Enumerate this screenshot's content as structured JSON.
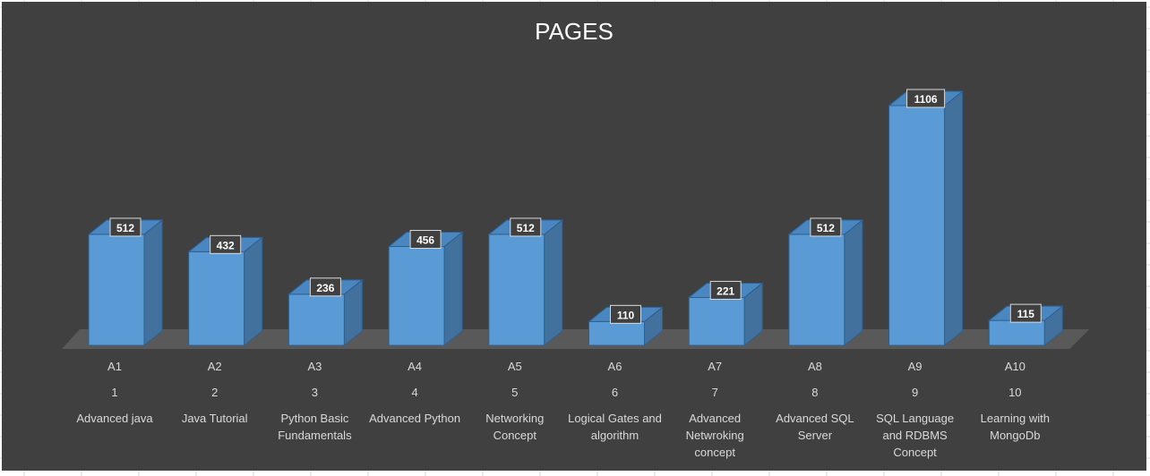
{
  "chart_data": {
    "type": "bar",
    "title": "PAGES",
    "categories": [
      {
        "id": "A1",
        "num": "1",
        "name": "Advanced java"
      },
      {
        "id": "A2",
        "num": "2",
        "name": "Java Tutorial"
      },
      {
        "id": "A3",
        "num": "3",
        "name": "Python Basic Fundamentals"
      },
      {
        "id": "A4",
        "num": "4",
        "name": "Advanced Python"
      },
      {
        "id": "A5",
        "num": "5",
        "name": "Networking Concept"
      },
      {
        "id": "A6",
        "num": "6",
        "name": "Logical Gates and algorithm"
      },
      {
        "id": "A7",
        "num": "7",
        "name": "Advanced Netwroking concept"
      },
      {
        "id": "A8",
        "num": "8",
        "name": "Advanced SQL Server"
      },
      {
        "id": "A9",
        "num": "9",
        "name": "SQL Language and RDBMS Concept"
      },
      {
        "id": "A10",
        "num": "10",
        "name": "Learning with MongoDb"
      }
    ],
    "values": [
      512,
      432,
      236,
      456,
      512,
      110,
      221,
      512,
      1106,
      115
    ],
    "style": "3d-column",
    "data_labels": true,
    "grid": false,
    "legend": "none"
  },
  "colors": {
    "background": "#404040",
    "bar_front": "#5b9bd5",
    "bar_side": "#41719c",
    "bar_top": "#4a86c0",
    "floor": "#595959",
    "text": "#d9d9d9",
    "title": "#ffffff"
  }
}
